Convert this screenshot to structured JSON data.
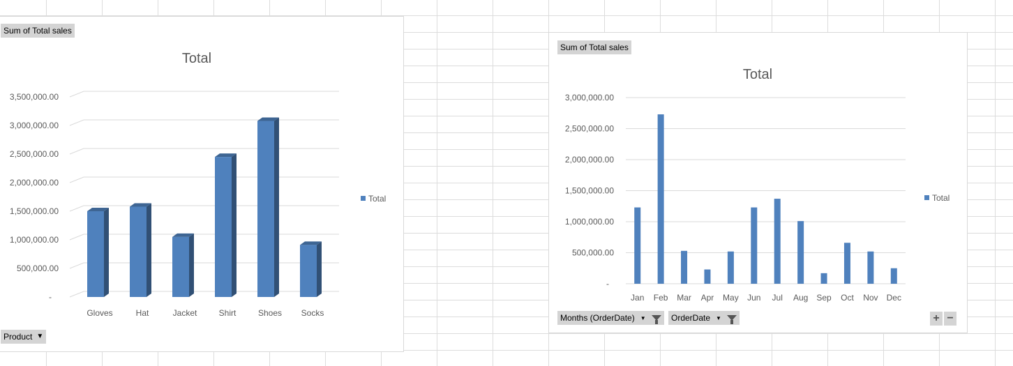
{
  "left_chart": {
    "value_field_label": "Sum of Total sales",
    "axis_field_label": "Product",
    "legend_label": "Total",
    "chart_data": {
      "type": "bar",
      "title": "Total",
      "categories": [
        "Gloves",
        "Hat",
        "Jacket",
        "Shirt",
        "Shoes",
        "Socks"
      ],
      "series": [
        {
          "name": "Total",
          "values": [
            1500000,
            1580000,
            1050000,
            2450000,
            3080000,
            910000
          ]
        }
      ],
      "y_ticks": [
        0,
        500000,
        1000000,
        1500000,
        2000000,
        2500000,
        3000000,
        3500000
      ],
      "y_tick_labels": [
        "-",
        "500,000.00",
        "1,000,000.00",
        "1,500,000.00",
        "2,000,000.00",
        "2,500,000.00",
        "3,000,000.00",
        "3,500,000.00"
      ],
      "ylim": [
        0,
        3500000
      ],
      "grid": true,
      "legend": "right",
      "color": "#4f81bd"
    }
  },
  "right_chart": {
    "value_field_label": "Sum of Total sales",
    "axis_field_labels": [
      "Months (OrderDate)",
      "OrderDate"
    ],
    "legend_label": "Total",
    "zoom_in_label": "+",
    "zoom_out_label": "−",
    "chart_data": {
      "type": "bar",
      "title": "Total",
      "categories": [
        "Jan",
        "Feb",
        "Mar",
        "Apr",
        "May",
        "Jun",
        "Jul",
        "Aug",
        "Sep",
        "Oct",
        "Nov",
        "Dec"
      ],
      "series": [
        {
          "name": "Total",
          "values": [
            1230000,
            2730000,
            530000,
            230000,
            520000,
            1230000,
            1370000,
            1010000,
            170000,
            660000,
            520000,
            250000
          ]
        }
      ],
      "y_ticks": [
        0,
        500000,
        1000000,
        1500000,
        2000000,
        2500000,
        3000000
      ],
      "y_tick_labels": [
        "-",
        "500,000.00",
        "1,000,000.00",
        "1,500,000.00",
        "2,000,000.00",
        "2,500,000.00",
        "3,000,000.00"
      ],
      "ylim": [
        0,
        3000000
      ],
      "grid": true,
      "legend": "right",
      "color": "#4f81bd"
    }
  }
}
